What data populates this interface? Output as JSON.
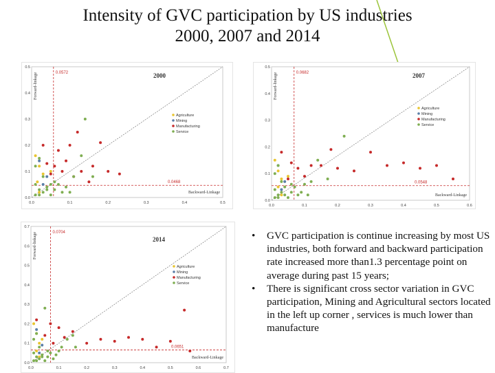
{
  "slide": {
    "title_line1": "Intensity of GVC participation by US industries",
    "title_line2": "2000, 2007 and 2014",
    "accent_color": "#9bc43a",
    "bullets": [
      "GVC participation is continue increasing by most US industries, both forward and backward participation rate increased more than1.3 percentage point on average during past 15 years;",
      "There is significant cross sector variation in GVC participation, Mining and Agricultural sectors located in the left up corner , services is much lower than manufacture"
    ],
    "bullet_symbol": "•"
  },
  "sector_colors": {
    "Agriculture": "#e8c531",
    "Mining": "#5b7fa8",
    "Manufacturing": "#c62a2a",
    "Service": "#7fae52"
  },
  "chart_data": [
    {
      "type": "scatter",
      "title": "2000",
      "xlabel": "Backward-Linkage",
      "ylabel": "Forward-linkage",
      "xlim": [
        0,
        0.5
      ],
      "ylim": [
        0,
        0.5
      ],
      "xticks": [
        "0.0",
        "0.1",
        "0.2",
        "0.3",
        "0.4",
        "0.5"
      ],
      "yticks": [
        "0.0",
        "0.1",
        "0.2",
        "0.3",
        "0.4",
        "0.5"
      ],
      "mean_x": 0.0572,
      "mean_y": 0.0468,
      "mean_x_label": "0.0572",
      "mean_y_label": "0.0468",
      "legend": [
        "Agriculture",
        "Mining",
        "Manufacturing",
        "Service"
      ],
      "series": [
        {
          "name": "Agriculture",
          "points": [
            [
              0.01,
              0.16
            ],
            [
              0.02,
              0.12
            ],
            [
              0.03,
              0.09
            ],
            [
              0.015,
              0.06
            ],
            [
              0.05,
              0.1
            ],
            [
              0.02,
              0.02
            ]
          ]
        },
        {
          "name": "Mining",
          "points": [
            [
              0.02,
              0.14
            ],
            [
              0.04,
              0.08
            ],
            [
              0.03,
              0.05
            ]
          ]
        },
        {
          "name": "Manufacturing",
          "points": [
            [
              0.03,
              0.2
            ],
            [
              0.07,
              0.18
            ],
            [
              0.12,
              0.25
            ],
            [
              0.1,
              0.2
            ],
            [
              0.18,
              0.21
            ],
            [
              0.2,
              0.1
            ],
            [
              0.23,
              0.09
            ],
            [
              0.16,
              0.12
            ],
            [
              0.13,
              0.1
            ],
            [
              0.09,
              0.14
            ],
            [
              0.06,
              0.12
            ],
            [
              0.15,
              0.06
            ],
            [
              0.11,
              0.08
            ],
            [
              0.05,
              0.09
            ],
            [
              0.08,
              0.1
            ],
            [
              0.04,
              0.13
            ]
          ]
        },
        {
          "name": "Service",
          "points": [
            [
              0.14,
              0.3
            ],
            [
              0.01,
              0.05
            ],
            [
              0.02,
              0.03
            ],
            [
              0.03,
              0.02
            ],
            [
              0.04,
              0.04
            ],
            [
              0.05,
              0.01
            ],
            [
              0.06,
              0.03
            ],
            [
              0.01,
              0.12
            ],
            [
              0.02,
              0.15
            ],
            [
              0.09,
              0.04
            ],
            [
              0.11,
              0.08
            ],
            [
              0.16,
              0.08
            ],
            [
              0.07,
              0.05
            ],
            [
              0.03,
              0.08
            ],
            [
              0.02,
              0.01
            ],
            [
              0.13,
              0.16
            ],
            [
              0.08,
              0.02
            ],
            [
              0.04,
              0.03
            ],
            [
              0.06,
              0.06
            ],
            [
              0.01,
              0.01
            ],
            [
              0.05,
              0.05
            ],
            [
              0.1,
              0.02
            ]
          ]
        }
      ]
    },
    {
      "type": "scatter",
      "title": "2007",
      "xlabel": "Backward-Linkage",
      "ylabel": "Forward-linkage",
      "xlim": [
        0,
        0.6
      ],
      "ylim": [
        0,
        0.5
      ],
      "xticks": [
        "0.0",
        "0.1",
        "0.2",
        "0.3",
        "0.4",
        "0.5",
        "0.6"
      ],
      "yticks": [
        "0.0",
        "0.1",
        "0.2",
        "0.3",
        "0.4",
        "0.5"
      ],
      "mean_x": 0.0682,
      "mean_y": 0.0548,
      "mean_x_label": "0.0682",
      "mean_y_label": "0.0548",
      "legend": [
        "Agriculture",
        "Mining",
        "Manufacturing",
        "Service"
      ],
      "series": [
        {
          "name": "Agriculture",
          "points": [
            [
              0.01,
              0.15
            ],
            [
              0.02,
              0.11
            ],
            [
              0.03,
              0.08
            ],
            [
              0.02,
              0.05
            ],
            [
              0.05,
              0.09
            ],
            [
              0.03,
              0.02
            ]
          ]
        },
        {
          "name": "Mining",
          "points": [
            [
              0.02,
              0.13
            ],
            [
              0.04,
              0.07
            ],
            [
              0.03,
              0.04
            ]
          ]
        },
        {
          "name": "Manufacturing",
          "points": [
            [
              0.03,
              0.18
            ],
            [
              0.08,
              0.12
            ],
            [
              0.15,
              0.13
            ],
            [
              0.2,
              0.12
            ],
            [
              0.25,
              0.11
            ],
            [
              0.3,
              0.18
            ],
            [
              0.35,
              0.13
            ],
            [
              0.45,
              0.12
            ],
            [
              0.5,
              0.13
            ],
            [
              0.55,
              0.08
            ],
            [
              0.18,
              0.19
            ],
            [
              0.1,
              0.09
            ],
            [
              0.06,
              0.14
            ],
            [
              0.12,
              0.13
            ],
            [
              0.05,
              0.08
            ],
            [
              0.4,
              0.14
            ]
          ]
        },
        {
          "name": "Service",
          "points": [
            [
              0.22,
              0.24
            ],
            [
              0.01,
              0.04
            ],
            [
              0.02,
              0.02
            ],
            [
              0.03,
              0.03
            ],
            [
              0.04,
              0.05
            ],
            [
              0.05,
              0.01
            ],
            [
              0.06,
              0.03
            ],
            [
              0.01,
              0.1
            ],
            [
              0.02,
              0.13
            ],
            [
              0.09,
              0.03
            ],
            [
              0.12,
              0.07
            ],
            [
              0.17,
              0.08
            ],
            [
              0.07,
              0.05
            ],
            [
              0.03,
              0.07
            ],
            [
              0.02,
              0.01
            ],
            [
              0.14,
              0.15
            ],
            [
              0.08,
              0.02
            ],
            [
              0.04,
              0.02
            ],
            [
              0.06,
              0.06
            ],
            [
              0.01,
              0.01
            ],
            [
              0.1,
              0.06
            ],
            [
              0.11,
              0.02
            ]
          ]
        }
      ]
    },
    {
      "type": "scatter",
      "title": "2014",
      "xlabel": "Backward-Linkage",
      "ylabel": "Forward-linkage",
      "xlim": [
        0,
        0.7
      ],
      "ylim": [
        0,
        0.7
      ],
      "xticks": [
        "0.0",
        "0.1",
        "0.2",
        "0.3",
        "0.4",
        "0.5",
        "0.6",
        "0.7"
      ],
      "yticks": [
        "0.0",
        "0.1",
        "0.2",
        "0.3",
        "0.4",
        "0.5",
        "0.6",
        "0.7"
      ],
      "mean_x": 0.0704,
      "mean_y": 0.0651,
      "mean_x_label": "0.0704",
      "mean_y_label": "0.0651",
      "legend": [
        "Agriculture",
        "Mining",
        "Manufacturing",
        "Service"
      ],
      "series": [
        {
          "name": "Agriculture",
          "points": [
            [
              0.01,
              0.2
            ],
            [
              0.02,
              0.15
            ],
            [
              0.03,
              0.1
            ],
            [
              0.02,
              0.06
            ],
            [
              0.04,
              0.12
            ],
            [
              0.03,
              0.03
            ]
          ]
        },
        {
          "name": "Mining",
          "points": [
            [
              0.02,
              0.17
            ],
            [
              0.04,
              0.09
            ],
            [
              0.03,
              0.05
            ]
          ]
        },
        {
          "name": "Manufacturing",
          "points": [
            [
              0.02,
              0.22
            ],
            [
              0.07,
              0.2
            ],
            [
              0.1,
              0.18
            ],
            [
              0.15,
              0.16
            ],
            [
              0.2,
              0.1
            ],
            [
              0.25,
              0.12
            ],
            [
              0.3,
              0.11
            ],
            [
              0.35,
              0.13
            ],
            [
              0.4,
              0.12
            ],
            [
              0.45,
              0.08
            ],
            [
              0.5,
              0.11
            ],
            [
              0.55,
              0.27
            ],
            [
              0.57,
              0.06
            ],
            [
              0.12,
              0.13
            ],
            [
              0.08,
              0.1
            ],
            [
              0.05,
              0.14
            ]
          ]
        },
        {
          "name": "Service",
          "points": [
            [
              0.05,
              0.28
            ],
            [
              0.01,
              0.05
            ],
            [
              0.02,
              0.03
            ],
            [
              0.03,
              0.02
            ],
            [
              0.04,
              0.04
            ],
            [
              0.05,
              0.01
            ],
            [
              0.06,
              0.03
            ],
            [
              0.01,
              0.12
            ],
            [
              0.02,
              0.15
            ],
            [
              0.09,
              0.04
            ],
            [
              0.11,
              0.08
            ],
            [
              0.16,
              0.08
            ],
            [
              0.07,
              0.05
            ],
            [
              0.03,
              0.08
            ],
            [
              0.02,
              0.01
            ],
            [
              0.13,
              0.12
            ],
            [
              0.08,
              0.02
            ],
            [
              0.04,
              0.03
            ],
            [
              0.06,
              0.06
            ],
            [
              0.01,
              0.01
            ],
            [
              0.1,
              0.06
            ],
            [
              0.15,
              0.14
            ]
          ]
        }
      ]
    }
  ]
}
